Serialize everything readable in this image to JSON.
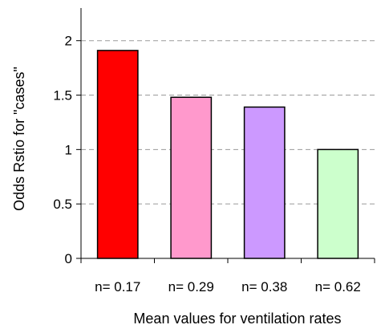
{
  "chart_data": {
    "type": "bar",
    "categories": [
      "n= 0.17",
      "n= 0.29",
      "n= 0.38",
      "n= 0.62"
    ],
    "values": [
      1.91,
      1.48,
      1.39,
      1.0
    ],
    "bar_colors": [
      "#ff0000",
      "#ff99cc",
      "#cc99ff",
      "#ccffcc"
    ],
    "xlabel": "Mean values for ventilation rates",
    "ylabel": "Odds Rstio for \"cases\"",
    "ylim": [
      0,
      2.3
    ],
    "yticks": [
      0,
      0.5,
      1,
      1.5,
      2
    ],
    "ytick_labels": [
      "0",
      "0.5",
      "1",
      "1.5",
      "2"
    ],
    "grid": "horizontal dashed"
  }
}
